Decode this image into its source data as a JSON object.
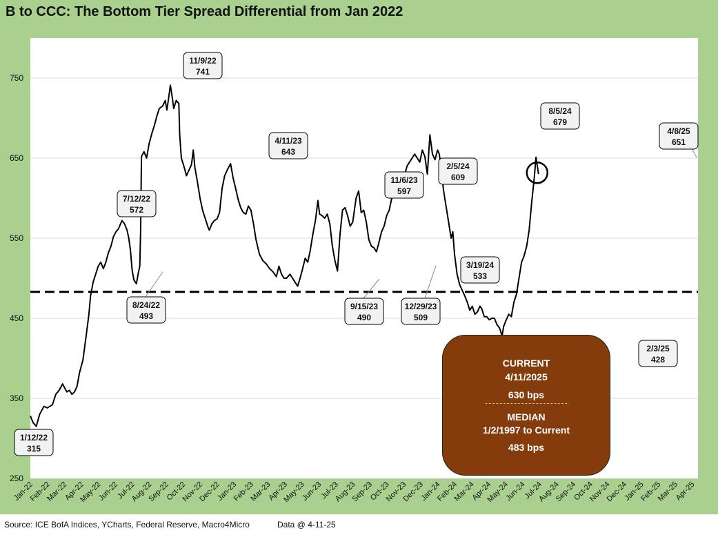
{
  "title": "B to CCC: The Bottom Tier Spread Differential from Jan 2022",
  "footer": {
    "source": "Source: ICE BofA Indices, YCharts, Federal Reserve, Macro4Micro",
    "data_as_of": "Data @ 4-11-25"
  },
  "info_box": {
    "current_label": "CURRENT",
    "current_date": "4/11/2025",
    "current_value": "630 bps",
    "median_label": "MEDIAN",
    "median_range": "1/2/1997 to Current",
    "median_value": "483 bps"
  },
  "colors": {
    "frame": "#a9d08e",
    "line": "#000000",
    "info_box": "#843c0c",
    "gridline": "#d9d9d9"
  },
  "chart_data": {
    "type": "line",
    "title": "B to CCC: The Bottom Tier Spread Differential from Jan 2022",
    "xlabel": "",
    "ylabel": "",
    "ylim": [
      250,
      800
    ],
    "yticks": [
      250,
      350,
      450,
      550,
      650,
      750
    ],
    "grid": true,
    "x_tick_labels": [
      "Jan-22",
      "Feb-22",
      "Mar-22",
      "Apr-22",
      "May-22",
      "Jun-22",
      "Jul-22",
      "Aug-22",
      "Sep-22",
      "Oct-22",
      "Nov-22",
      "Dec-22",
      "Jan-23",
      "Feb-23",
      "Mar-23",
      "Apr-23",
      "May-23",
      "Jun-23",
      "Jul-23",
      "Aug-23",
      "Sep-23",
      "Oct-23",
      "Nov-23",
      "Dec-23",
      "Jan-24",
      "Feb-24",
      "Mar-24",
      "Apr-24",
      "May-24",
      "Jun-24",
      "Jul-24",
      "Aug-24",
      "Sep-24",
      "Oct-24",
      "Nov-24",
      "Dec-24",
      "Jan-25",
      "Feb-25",
      "Mar-25",
      "Apr-25"
    ],
    "median": {
      "value": 483,
      "label": "MEDIAN 1/2/1997 to Current",
      "style": "dashed"
    },
    "current_marker": {
      "date": "4/11/2025",
      "value": 630
    },
    "series": [
      {
        "name": "B to CCC spread differential (bps)",
        "points": [
          [
            0.0,
            328
          ],
          [
            0.15,
            320
          ],
          [
            0.35,
            315
          ],
          [
            0.55,
            330
          ],
          [
            0.8,
            340
          ],
          [
            1.0,
            338
          ],
          [
            1.3,
            342
          ],
          [
            1.5,
            355
          ],
          [
            1.7,
            360
          ],
          [
            1.9,
            368
          ],
          [
            2.05,
            362
          ],
          [
            2.15,
            358
          ],
          [
            2.3,
            360
          ],
          [
            2.45,
            355
          ],
          [
            2.6,
            358
          ],
          [
            2.75,
            365
          ],
          [
            2.9,
            382
          ],
          [
            3.1,
            398
          ],
          [
            3.3,
            430
          ],
          [
            3.45,
            455
          ],
          [
            3.55,
            478
          ],
          [
            3.7,
            495
          ],
          [
            3.85,
            505
          ],
          [
            4.0,
            515
          ],
          [
            4.15,
            520
          ],
          [
            4.3,
            512
          ],
          [
            4.45,
            520
          ],
          [
            4.6,
            532
          ],
          [
            4.75,
            540
          ],
          [
            4.9,
            552
          ],
          [
            5.05,
            558
          ],
          [
            5.2,
            562
          ],
          [
            5.4,
            572
          ],
          [
            5.55,
            568
          ],
          [
            5.7,
            560
          ],
          [
            5.8,
            550
          ],
          [
            5.9,
            535
          ],
          [
            6.0,
            510
          ],
          [
            6.1,
            498
          ],
          [
            6.25,
            493
          ],
          [
            6.35,
            505
          ],
          [
            6.45,
            515
          ],
          [
            6.5,
            560
          ],
          [
            6.55,
            652
          ],
          [
            6.7,
            658
          ],
          [
            6.85,
            650
          ],
          [
            7.0,
            668
          ],
          [
            7.15,
            680
          ],
          [
            7.3,
            690
          ],
          [
            7.45,
            702
          ],
          [
            7.6,
            712
          ],
          [
            7.8,
            715
          ],
          [
            7.95,
            722
          ],
          [
            8.05,
            710
          ],
          [
            8.15,
            725
          ],
          [
            8.25,
            741
          ],
          [
            8.35,
            728
          ],
          [
            8.45,
            712
          ],
          [
            8.6,
            722
          ],
          [
            8.75,
            718
          ],
          [
            8.8,
            680
          ],
          [
            8.9,
            650
          ],
          [
            9.05,
            640
          ],
          [
            9.2,
            628
          ],
          [
            9.35,
            635
          ],
          [
            9.5,
            642
          ],
          [
            9.6,
            660
          ],
          [
            9.7,
            638
          ],
          [
            9.85,
            620
          ],
          [
            10.0,
            600
          ],
          [
            10.15,
            585
          ],
          [
            10.3,
            575
          ],
          [
            10.45,
            565
          ],
          [
            10.55,
            560
          ],
          [
            10.7,
            568
          ],
          [
            10.85,
            572
          ],
          [
            11.0,
            574
          ],
          [
            11.15,
            582
          ],
          [
            11.3,
            612
          ],
          [
            11.45,
            628
          ],
          [
            11.6,
            635
          ],
          [
            11.8,
            643
          ],
          [
            11.95,
            625
          ],
          [
            12.1,
            612
          ],
          [
            12.25,
            598
          ],
          [
            12.4,
            588
          ],
          [
            12.55,
            582
          ],
          [
            12.7,
            580
          ],
          [
            12.85,
            590
          ],
          [
            13.0,
            585
          ],
          [
            13.15,
            568
          ],
          [
            13.3,
            548
          ],
          [
            13.5,
            530
          ],
          [
            13.7,
            522
          ],
          [
            13.9,
            518
          ],
          [
            14.1,
            512
          ],
          [
            14.3,
            508
          ],
          [
            14.5,
            502
          ],
          [
            14.65,
            515
          ],
          [
            14.8,
            505
          ],
          [
            14.95,
            500
          ],
          [
            15.1,
            500
          ],
          [
            15.3,
            505
          ],
          [
            15.45,
            500
          ],
          [
            15.6,
            495
          ],
          [
            15.75,
            490
          ],
          [
            15.9,
            500
          ],
          [
            16.05,
            512
          ],
          [
            16.2,
            525
          ],
          [
            16.35,
            520
          ],
          [
            16.5,
            535
          ],
          [
            16.65,
            555
          ],
          [
            16.8,
            572
          ],
          [
            16.95,
            597
          ],
          [
            17.05,
            580
          ],
          [
            17.2,
            578
          ],
          [
            17.35,
            575
          ],
          [
            17.5,
            580
          ],
          [
            17.65,
            568
          ],
          [
            17.8,
            540
          ],
          [
            17.95,
            522
          ],
          [
            18.1,
            509
          ],
          [
            18.25,
            555
          ],
          [
            18.4,
            585
          ],
          [
            18.55,
            588
          ],
          [
            18.7,
            578
          ],
          [
            18.85,
            565
          ],
          [
            19.0,
            570
          ],
          [
            19.2,
            600
          ],
          [
            19.35,
            609
          ],
          [
            19.5,
            582
          ],
          [
            19.65,
            585
          ],
          [
            19.8,
            570
          ],
          [
            19.95,
            548
          ],
          [
            20.1,
            540
          ],
          [
            20.25,
            538
          ],
          [
            20.4,
            533
          ],
          [
            20.55,
            545
          ],
          [
            20.7,
            558
          ],
          [
            20.85,
            565
          ],
          [
            21.0,
            578
          ],
          [
            21.15,
            585
          ],
          [
            21.3,
            600
          ],
          [
            21.45,
            612
          ],
          [
            21.6,
            625
          ],
          [
            21.75,
            620
          ],
          [
            21.9,
            612
          ],
          [
            22.05,
            628
          ],
          [
            22.2,
            640
          ],
          [
            22.35,
            645
          ],
          [
            22.5,
            650
          ],
          [
            22.65,
            655
          ],
          [
            22.8,
            650
          ],
          [
            22.95,
            645
          ],
          [
            23.1,
            660
          ],
          [
            23.25,
            652
          ],
          [
            23.4,
            630
          ],
          [
            23.55,
            679
          ],
          [
            23.7,
            655
          ],
          [
            23.85,
            648
          ],
          [
            24.0,
            660
          ],
          [
            24.1,
            655
          ],
          [
            24.2,
            640
          ],
          [
            24.35,
            610
          ],
          [
            24.5,
            590
          ],
          [
            24.65,
            570
          ],
          [
            24.8,
            550
          ],
          [
            24.9,
            558
          ],
          [
            25.0,
            530
          ],
          [
            25.15,
            505
          ],
          [
            25.3,
            492
          ],
          [
            25.45,
            485
          ],
          [
            25.6,
            478
          ],
          [
            25.75,
            470
          ],
          [
            25.9,
            460
          ],
          [
            26.05,
            465
          ],
          [
            26.2,
            455
          ],
          [
            26.35,
            458
          ],
          [
            26.5,
            465
          ],
          [
            26.6,
            462
          ],
          [
            26.75,
            452
          ],
          [
            26.9,
            452
          ],
          [
            27.05,
            448
          ],
          [
            27.2,
            450
          ],
          [
            27.35,
            450
          ],
          [
            27.5,
            442
          ],
          [
            27.65,
            438
          ],
          [
            27.8,
            428
          ],
          [
            27.9,
            440
          ],
          [
            28.05,
            448
          ],
          [
            28.2,
            455
          ],
          [
            28.35,
            452
          ],
          [
            28.5,
            470
          ],
          [
            28.65,
            480
          ],
          [
            28.8,
            500
          ],
          [
            28.95,
            520
          ],
          [
            29.1,
            528
          ],
          [
            29.25,
            540
          ],
          [
            29.4,
            560
          ],
          [
            29.55,
            595
          ],
          [
            29.7,
            625
          ],
          [
            29.8,
            651
          ],
          [
            29.95,
            630
          ]
        ]
      }
    ],
    "annotations": [
      {
        "date": "1/12/22",
        "value": 315
      },
      {
        "date": "7/12/22",
        "value": 572
      },
      {
        "date": "8/24/22",
        "value": 493
      },
      {
        "date": "11/9/22",
        "value": 741
      },
      {
        "date": "4/11/23",
        "value": 643
      },
      {
        "date": "9/15/23",
        "value": 490
      },
      {
        "date": "11/6/23",
        "value": 597
      },
      {
        "date": "12/29/23",
        "value": 509
      },
      {
        "date": "2/5/24",
        "value": 609
      },
      {
        "date": "3/19/24",
        "value": 533
      },
      {
        "date": "8/5/24",
        "value": 679
      },
      {
        "date": "2/3/25",
        "value": 428
      },
      {
        "date": "4/8/25",
        "value": 651
      }
    ]
  }
}
